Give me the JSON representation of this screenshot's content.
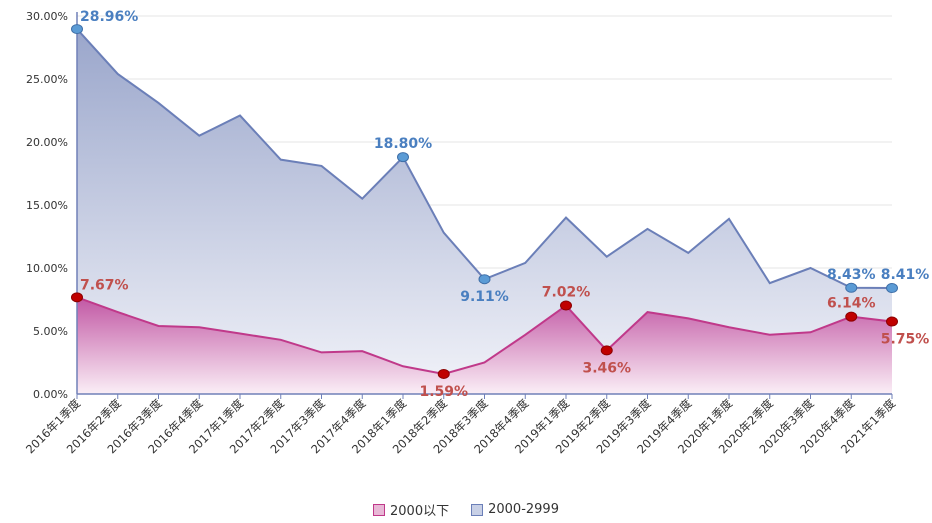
{
  "chart_data": {
    "type": "area",
    "categories": [
      "2016年1季度",
      "2016年2季度",
      "2016年3季度",
      "2016年4季度",
      "2017年1季度",
      "2017年2季度",
      "2017年3季度",
      "2017年4季度",
      "2018年1季度",
      "2018年2季度",
      "2018年3季度",
      "2018年4季度",
      "2019年1季度",
      "2019年2季度",
      "2019年3季度",
      "2019年4季度",
      "2020年1季度",
      "2020年2季度",
      "2020年3季度",
      "2020年4季度",
      "2021年1季度"
    ],
    "yticks": [
      "0.00%",
      "5.00%",
      "10.00%",
      "15.00%",
      "20.00%",
      "25.00%",
      "30.00%"
    ],
    "ylim": [
      0,
      30
    ],
    "series": [
      {
        "name": "2000-2999",
        "color": "#6b7fb8",
        "label_color": "#4a7fc0",
        "values": [
          28.96,
          25.4,
          23.1,
          20.5,
          22.1,
          18.6,
          18.1,
          15.5,
          18.8,
          12.8,
          9.11,
          10.4,
          14.0,
          10.9,
          13.1,
          11.2,
          13.9,
          8.8,
          10.0,
          8.43,
          8.41
        ],
        "labels": [
          {
            "index": 0,
            "text": "28.96%",
            "pos": "right"
          },
          {
            "index": 8,
            "text": "18.80%",
            "pos": "above"
          },
          {
            "index": 10,
            "text": "9.11%",
            "pos": "below"
          },
          {
            "index": 19,
            "text": "8.43%",
            "pos": "above"
          },
          {
            "index": 20,
            "text": "8.41%",
            "pos": "above"
          }
        ]
      },
      {
        "name": "2000以下",
        "color": "#c0398a",
        "label_color": "#c0504d",
        "values": [
          7.67,
          6.5,
          5.4,
          5.3,
          4.8,
          4.3,
          3.3,
          3.4,
          2.2,
          1.59,
          2.5,
          4.7,
          7.02,
          3.46,
          6.5,
          6.0,
          5.3,
          4.7,
          4.9,
          6.14,
          5.75
        ],
        "labels": [
          {
            "index": 0,
            "text": "7.67%",
            "pos": "right"
          },
          {
            "index": 9,
            "text": "1.59%",
            "pos": "below"
          },
          {
            "index": 12,
            "text": "7.02%",
            "pos": "above"
          },
          {
            "index": 13,
            "text": "3.46%",
            "pos": "below"
          },
          {
            "index": 19,
            "text": "6.14%",
            "pos": "above"
          },
          {
            "index": 20,
            "text": "5.75%",
            "pos": "below"
          }
        ]
      }
    ],
    "legend": [
      {
        "name": "2000以下",
        "fill": "#e8b8d6",
        "border": "#c0398a"
      },
      {
        "name": "2000-2999",
        "fill": "#c8d0e6",
        "border": "#6b7fb8"
      }
    ],
    "legend_position": "bottom"
  }
}
